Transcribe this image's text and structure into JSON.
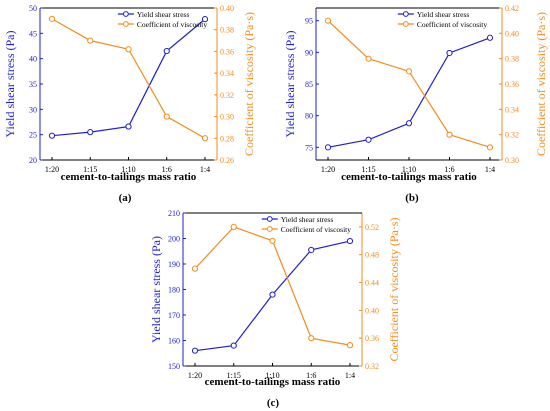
{
  "colors": {
    "left_series": "#1f1fd0",
    "right_series": "#f28c1c",
    "axis": "#000000"
  },
  "chart_data": [
    {
      "type": "line",
      "panel_label": "(a)",
      "xlabel": "cement-to-tailings mass ratio",
      "ylabel": "Yield shear stress (Pa)",
      "y2label": "Coefficient of viscosity (Pa·s)",
      "categories": [
        "1:20",
        "1:15",
        "1:10",
        "1:6",
        "1:4"
      ],
      "ylim": [
        20,
        50
      ],
      "yticks": [
        20,
        25,
        30,
        35,
        40,
        45,
        50
      ],
      "y2lim": [
        0.26,
        0.4
      ],
      "y2ticks": [
        0.26,
        0.28,
        0.3,
        0.32,
        0.34,
        0.36,
        0.38,
        0.4
      ],
      "legend_position": "top-right",
      "series": [
        {
          "name": "Yield shear stress",
          "axis": "left",
          "values": [
            24.8,
            25.5,
            26.6,
            41.5,
            47.8
          ]
        },
        {
          "name": "Coefficient of viscosity",
          "axis": "right",
          "values": [
            0.39,
            0.37,
            0.362,
            0.3,
            0.28
          ]
        }
      ]
    },
    {
      "type": "line",
      "panel_label": "(b)",
      "xlabel": "cement-to-tailings mass ratio",
      "ylabel": "Yield shear stress (Pa)",
      "y2label": "Coefficient of viscosity (Pa·s)",
      "categories": [
        "1:20",
        "1:15",
        "1:10",
        "1:6",
        "1:4"
      ],
      "ylim": [
        73,
        97
      ],
      "yticks": [
        75,
        80,
        85,
        90,
        95
      ],
      "y2lim": [
        0.3,
        0.42
      ],
      "y2ticks": [
        0.3,
        0.32,
        0.34,
        0.36,
        0.38,
        0.4,
        0.42
      ],
      "legend_position": "top-right",
      "series": [
        {
          "name": "Yield shear stress",
          "axis": "left",
          "values": [
            75.0,
            76.2,
            78.8,
            89.9,
            92.3
          ]
        },
        {
          "name": "Coefficient of viscosity",
          "axis": "right",
          "values": [
            0.41,
            0.38,
            0.37,
            0.32,
            0.31
          ]
        }
      ]
    },
    {
      "type": "line",
      "panel_label": "(c)",
      "xlabel": "cement-to-tailings mass ratio",
      "ylabel": "Yield shear stress (Pa)",
      "y2label": "Coefficient of viscosity (Pa·s)",
      "categories": [
        "1:20",
        "1:15",
        "1:10",
        "1:6",
        "1:4"
      ],
      "ylim": [
        150,
        210
      ],
      "yticks": [
        150,
        160,
        170,
        180,
        190,
        200,
        210
      ],
      "y2lim": [
        0.32,
        0.54
      ],
      "y2ticks": [
        0.32,
        0.36,
        0.4,
        0.44,
        0.48,
        0.52
      ],
      "legend_position": "top-right",
      "series": [
        {
          "name": "Yield shear stress",
          "axis": "left",
          "values": [
            156.0,
            158.0,
            178.0,
            195.5,
            199.0
          ]
        },
        {
          "name": "Coefficient of viscosity",
          "axis": "right",
          "values": [
            0.46,
            0.52,
            0.5,
            0.36,
            0.35
          ]
        }
      ]
    }
  ]
}
